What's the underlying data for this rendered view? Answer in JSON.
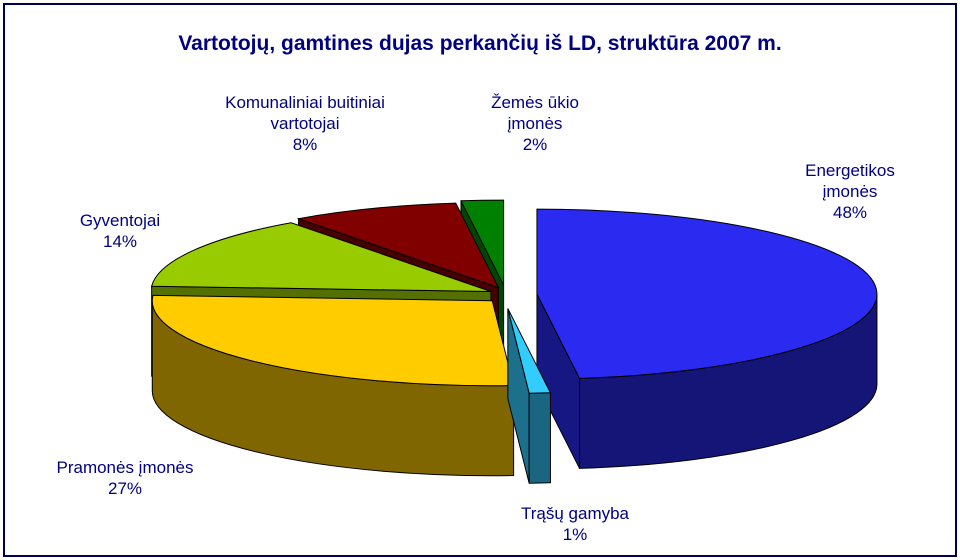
{
  "chart_data": {
    "type": "pie3d",
    "title": "Vartotojų, gamtines dujas perkančių iš LD, struktūra 2007 m.",
    "categories": [
      "Energetikos įmonės",
      "Trąšų gamyba",
      "Pramonės įmonės",
      "Gyventojai",
      "Komunaliniai buitiniai vartotojai",
      "Žemės ūkio įmonės"
    ],
    "values": [
      48,
      1,
      27,
      14,
      8,
      2
    ],
    "value_labels": [
      "48%",
      "1%",
      "27%",
      "14%",
      "8%",
      "2%"
    ],
    "colors": [
      "#2a2af0",
      "#33ccff",
      "#ffcc00",
      "#99cc00",
      "#800000",
      "#008000"
    ]
  }
}
